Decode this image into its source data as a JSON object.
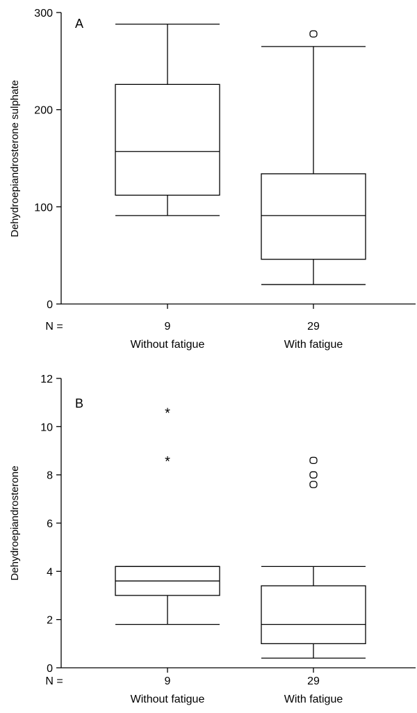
{
  "chart_data": [
    {
      "type": "boxplot",
      "panel_label": "A",
      "ylabel": "Dehydroepiandrosterone sulphate",
      "ylim": [
        0,
        300
      ],
      "yticks": [
        0,
        100,
        200,
        300
      ],
      "n_prefix": "N =",
      "categories": [
        "Without fatigue",
        "With fatigue"
      ],
      "boxes": [
        {
          "category": "Without fatigue",
          "n": "9",
          "min": 91,
          "q1": 112,
          "median": 157,
          "q3": 226,
          "max": 288,
          "outliers": [],
          "extremes": []
        },
        {
          "category": "With fatigue",
          "n": "29",
          "min": 20,
          "q1": 46,
          "median": 91,
          "q3": 134,
          "max": 265,
          "outliers": [
            278
          ],
          "extremes": []
        }
      ]
    },
    {
      "type": "boxplot",
      "panel_label": "B",
      "ylabel": "Dehydroepiandrosterone",
      "ylim": [
        0,
        12
      ],
      "yticks": [
        0,
        2,
        4,
        6,
        8,
        10,
        12
      ],
      "n_prefix": "N =",
      "categories": [
        "Without fatigue",
        "With fatigue"
      ],
      "boxes": [
        {
          "category": "Without fatigue",
          "n": "9",
          "min": 1.8,
          "q1": 3.0,
          "median": 3.6,
          "q3": 4.2,
          "max": 4.2,
          "outliers": [],
          "extremes": [
            8.6,
            10.6
          ]
        },
        {
          "category": "With fatigue",
          "n": "29",
          "min": 0.4,
          "q1": 1.0,
          "median": 1.8,
          "q3": 3.4,
          "max": 4.2,
          "outliers": [
            7.6,
            8.0,
            8.6
          ],
          "extremes": []
        }
      ]
    }
  ]
}
